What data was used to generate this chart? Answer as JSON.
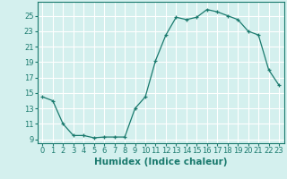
{
  "x": [
    0,
    1,
    2,
    3,
    4,
    5,
    6,
    7,
    8,
    9,
    10,
    11,
    12,
    13,
    14,
    15,
    16,
    17,
    18,
    19,
    20,
    21,
    22,
    23
  ],
  "y": [
    14.5,
    14.0,
    11.0,
    9.5,
    9.5,
    9.2,
    9.3,
    9.3,
    9.3,
    13.0,
    14.5,
    19.2,
    22.5,
    24.8,
    24.5,
    24.8,
    25.8,
    25.5,
    25.0,
    24.5,
    23.0,
    22.5,
    18.0,
    16.0
  ],
  "xlabel": "Humidex (Indice chaleur)",
  "xlim": [
    -0.5,
    23.5
  ],
  "ylim": [
    8.5,
    26.8
  ],
  "yticks": [
    9,
    11,
    13,
    15,
    17,
    19,
    21,
    23,
    25
  ],
  "xticks": [
    0,
    1,
    2,
    3,
    4,
    5,
    6,
    7,
    8,
    9,
    10,
    11,
    12,
    13,
    14,
    15,
    16,
    17,
    18,
    19,
    20,
    21,
    22,
    23
  ],
  "xtick_labels": [
    "0",
    "1",
    "2",
    "3",
    "4",
    "5",
    "6",
    "7",
    "8",
    "9",
    "10",
    "11",
    "12",
    "13",
    "14",
    "15",
    "16",
    "17",
    "18",
    "19",
    "20",
    "21",
    "22",
    "23"
  ],
  "line_color": "#1a7a6e",
  "marker": "+",
  "bg_color": "#d4f0ee",
  "grid_color": "#ffffff",
  "tick_fontsize": 6.0,
  "xlabel_fontsize": 7.5
}
